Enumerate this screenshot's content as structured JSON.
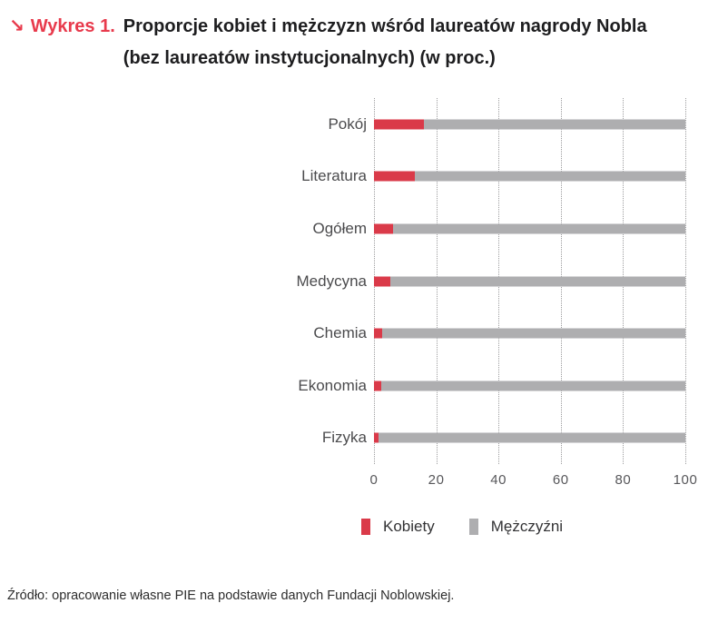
{
  "title": {
    "arrow": "↘",
    "prefix": "Wykres 1.",
    "line1": "Proporcje kobiet i mężczyzn wśród laureatów nagrody Nobla",
    "line2": "(bez laureatów instytucjonalnych) (w proc.)"
  },
  "chart_data": {
    "type": "bar",
    "orientation": "horizontal",
    "stacked": true,
    "title": "Proporcje kobiet i mężczyzn wśród laureatów nagrody Nobla (bez laureatów instytucjonalnych) (w proc.)",
    "categories": [
      "Pokój",
      "Literatura",
      "Ogółem",
      "Medycyna",
      "Chemia",
      "Ekonomia",
      "Fizyka"
    ],
    "series": [
      {
        "name": "Kobiety",
        "color": "#DA3A49",
        "values": [
          16,
          13,
          6,
          5.3,
          2.7,
          2.4,
          1.4
        ]
      },
      {
        "name": "Mężczyźni",
        "color": "#AEAEB0",
        "values": [
          84,
          87,
          94,
          94.7,
          97.3,
          97.6,
          98.6
        ]
      }
    ],
    "xlim": [
      0,
      100
    ],
    "x_ticks": [
      "0",
      "20",
      "40",
      "60",
      "80",
      "100"
    ],
    "grid": "vertical-dotted",
    "legend_position": "bottom"
  },
  "source": "Źródło: opracowanie własne PIE na podstawie danych Fundacji Noblowskiej.",
  "colors": {
    "accent_red": "#E83A4C",
    "women": "#DA3A49",
    "men": "#AEAEB0",
    "gridline": "#9C9C9E"
  }
}
